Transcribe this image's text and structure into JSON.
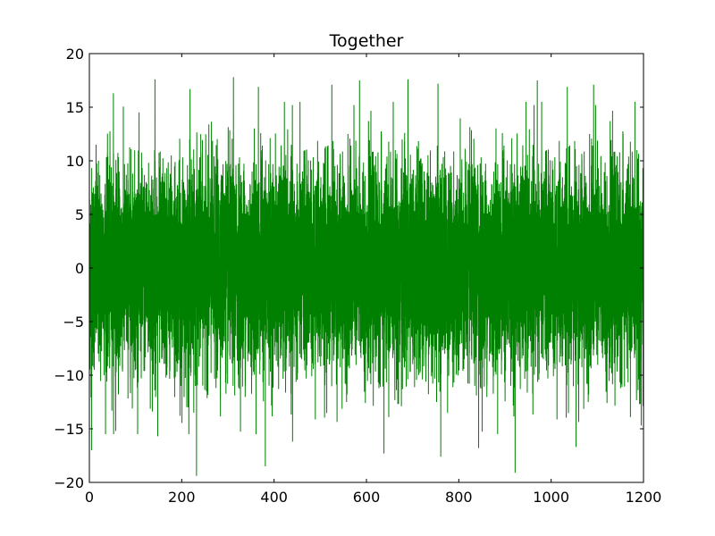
{
  "chart_data": {
    "type": "line",
    "title": "Together",
    "xlabel": "",
    "ylabel": "",
    "xlim": [
      0,
      1200
    ],
    "ylim": [
      -20,
      20
    ],
    "xticks": [
      0,
      200,
      400,
      600,
      800,
      1000,
      1200
    ],
    "yticks": [
      -20,
      -15,
      -10,
      -5,
      0,
      5,
      10,
      15,
      20
    ],
    "xtick_labels": [
      "0",
      "200",
      "400",
      "600",
      "800",
      "1000",
      "1200"
    ],
    "ytick_labels": [
      "−20",
      "−15",
      "−10",
      "−5",
      "0",
      "5",
      "10",
      "15",
      "20"
    ],
    "grid": false,
    "series": [
      {
        "color": "#008000",
        "x_start": 0,
        "x_end": 1200,
        "samples": 12000,
        "std": 4.6,
        "highs": [
          [
            52,
            16.3
          ],
          [
            142,
            17.6
          ],
          [
            218,
            16.7
          ],
          [
            312,
            17.8
          ],
          [
            366,
            16.9
          ],
          [
            525,
            17.1
          ],
          [
            585,
            17.5
          ],
          [
            690,
            17.6
          ],
          [
            755,
            17.2
          ],
          [
            970,
            17.5
          ],
          [
            1035,
            16.9
          ],
          [
            1092,
            17.1
          ]
        ],
        "lows": [
          [
            5,
            -17.0
          ],
          [
            57,
            -15.2
          ],
          [
            148,
            -15.7
          ],
          [
            232,
            -19.4
          ],
          [
            381,
            -18.5
          ],
          [
            440,
            -16.2
          ],
          [
            638,
            -17.3
          ],
          [
            761,
            -17.6
          ],
          [
            843,
            -16.8
          ],
          [
            922,
            -19.1
          ],
          [
            1054,
            -16.7
          ],
          [
            1195,
            -14.7
          ]
        ]
      }
    ]
  }
}
